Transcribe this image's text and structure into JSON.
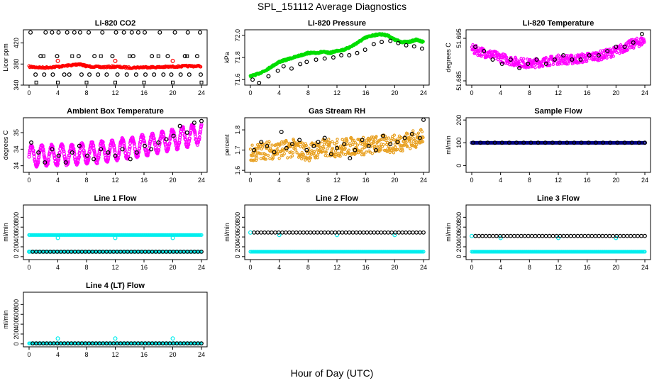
{
  "title": "SPL_151112  Average Diagnostics",
  "xlabel": "Hour of Day (UTC)",
  "colors": {
    "red": "#ff0000",
    "green": "#00dd00",
    "magenta": "#ff00ff",
    "orange": "#e8a020",
    "navy": "#000080",
    "cyan": "#00eeee",
    "black": "#000000"
  },
  "chart_data": [
    {
      "type": "scatter",
      "title": "Li-820 CO2",
      "ylabel": "Licor ppm",
      "xlim": [
        0,
        24
      ],
      "xticks": [
        0,
        4,
        8,
        12,
        16,
        20,
        24
      ],
      "ylim": [
        340,
        445
      ],
      "yticks": [
        340,
        380,
        420
      ],
      "series": [
        {
          "color": "#ff0000",
          "kind": "dense",
          "x": [
            0,
            2,
            4,
            6,
            7,
            8,
            10,
            12,
            14,
            16,
            18,
            20,
            22,
            24
          ],
          "y": [
            375,
            373,
            375,
            378,
            380,
            376,
            374,
            375,
            373,
            374,
            374,
            375,
            376,
            376
          ]
        },
        {
          "color": "#ff0000",
          "kind": "points",
          "x": [
            4,
            12,
            20
          ],
          "y": [
            386,
            386,
            386
          ]
        },
        {
          "color": "#000000",
          "kind": "points",
          "x": [
            0.2,
            2.3,
            3.2,
            4.1,
            5.3,
            6.3,
            7.1,
            8.3,
            10.2,
            12.1,
            13.2,
            14.3,
            15.2,
            16.1,
            18.2,
            20.3,
            22.1,
            23.8,
            0.9,
            2.1,
            3.3,
            4.9,
            5.6,
            7.3,
            8.4,
            9.6,
            10.8,
            12.3,
            13.6,
            14.9,
            16.2,
            17.4,
            18.7,
            19.8,
            21.1,
            22.3,
            23.9,
            1.6,
            3.9,
            6.9,
            9.1,
            11.6,
            14.5,
            17.1,
            19.3,
            21.7,
            23.4
          ],
          "y": [
            440,
            440,
            440,
            440,
            440,
            440,
            440,
            440,
            440,
            440,
            440,
            440,
            440,
            440,
            440,
            440,
            440,
            440,
            360,
            360,
            360,
            360,
            360,
            360,
            360,
            360,
            360,
            360,
            360,
            360,
            360,
            360,
            360,
            360,
            360,
            360,
            360,
            395,
            395,
            395,
            395,
            395,
            395,
            395,
            395,
            395,
            395
          ]
        },
        {
          "color": "#000000",
          "kind": "squares",
          "x": [
            1,
            4,
            8,
            12,
            16,
            20,
            24,
            2,
            6,
            10,
            14,
            18,
            22
          ],
          "y": [
            345,
            345,
            345,
            345,
            345,
            345,
            345,
            395,
            395,
            395,
            395,
            395,
            395
          ]
        }
      ]
    },
    {
      "type": "scatter",
      "title": "Li-820 Pressure",
      "ylabel": "kPa",
      "xlim": [
        0,
        24
      ],
      "xticks": [
        0,
        4,
        8,
        12,
        16,
        20,
        24
      ],
      "ylim": [
        71.55,
        72.05
      ],
      "yticks": [
        71.6,
        71.8,
        72.0
      ],
      "series": [
        {
          "color": "#00dd00",
          "kind": "dense",
          "x": [
            0,
            1,
            2,
            3,
            4,
            5,
            6,
            7,
            8,
            9,
            10,
            11,
            12,
            13,
            14,
            15,
            16,
            17,
            18,
            19,
            20,
            21,
            22,
            23,
            24
          ],
          "y": [
            71.63,
            71.65,
            71.68,
            71.72,
            71.76,
            71.78,
            71.8,
            71.82,
            71.84,
            71.84,
            71.85,
            71.84,
            71.86,
            71.87,
            71.9,
            71.94,
            71.98,
            72.0,
            72.01,
            72.0,
            71.96,
            71.94,
            71.94,
            71.96,
            71.94
          ]
        },
        {
          "color": "#000000",
          "kind": "points",
          "x": [
            0.3,
            1.2,
            2.5,
            3.8,
            4.6,
            5.7,
            6.9,
            7.8,
            9.1,
            10.3,
            11.5,
            12.6,
            13.7,
            14.8,
            15.9,
            17.1,
            18.2,
            19.4,
            20.5,
            21.6,
            22.7,
            23.8
          ],
          "y": [
            71.6,
            71.57,
            71.63,
            71.68,
            71.72,
            71.7,
            71.74,
            71.76,
            71.78,
            71.79,
            71.8,
            71.82,
            71.82,
            71.84,
            71.87,
            71.92,
            71.94,
            71.95,
            71.93,
            71.91,
            71.9,
            71.88
          ]
        }
      ]
    },
    {
      "type": "scatter",
      "title": "Li-820 Temperature",
      "ylabel": "degrees C",
      "xlim": [
        0,
        24
      ],
      "xticks": [
        0,
        4,
        8,
        12,
        16,
        20,
        24
      ],
      "ylim": [
        51.684,
        51.697
      ],
      "yticks": [
        51.685,
        51.695
      ],
      "series": [
        {
          "color": "#ff00ff",
          "kind": "noisy",
          "x": [
            0,
            2,
            4,
            6,
            8,
            10,
            12,
            14,
            16,
            18,
            20,
            22,
            24
          ],
          "y": [
            51.6925,
            51.6915,
            51.6905,
            51.6895,
            51.689,
            51.6895,
            51.69,
            51.69,
            51.6905,
            51.691,
            51.692,
            51.6935,
            51.6945
          ],
          "spread": 0.0022
        },
        {
          "color": "#000000",
          "kind": "points",
          "x": [
            0.5,
            1.7,
            2.9,
            4.2,
            5.4,
            6.6,
            7.8,
            9.0,
            10.3,
            11.5,
            12.7,
            13.9,
            15.1,
            16.3,
            17.6,
            18.8,
            20.0,
            21.2,
            22.4,
            23.6
          ],
          "y": [
            51.693,
            51.692,
            51.69,
            51.689,
            51.69,
            51.688,
            51.689,
            51.69,
            51.689,
            51.69,
            51.691,
            51.69,
            51.69,
            51.691,
            51.691,
            51.692,
            51.693,
            51.693,
            51.694,
            51.696
          ]
        }
      ]
    },
    {
      "type": "scatter",
      "title": "Ambient Box Temperature",
      "ylabel": "degrees C",
      "xlim": [
        0,
        24
      ],
      "xticks": [
        0,
        4,
        8,
        12,
        16,
        20,
        24
      ],
      "ylim": [
        33.3,
        34.95
      ],
      "yticks": [
        33.5,
        34.0,
        34.5
      ],
      "series": [
        {
          "color": "#ff00ff",
          "kind": "wave",
          "x": [
            0,
            24
          ],
          "base": [
            33.8,
            34.5
          ],
          "amp": 0.3,
          "period": 1.4
        },
        {
          "color": "#000000",
          "kind": "points",
          "x": [
            0.3,
            1.3,
            2.2,
            3.2,
            4.1,
            5.1,
            6.0,
            7.0,
            8.1,
            9.0,
            10.0,
            11.0,
            12.0,
            13.0,
            14.1,
            15.0,
            16.1,
            17.0,
            18.0,
            19.1,
            20.1,
            21.0,
            22.0,
            23.0,
            24.0
          ],
          "y": [
            34.2,
            33.9,
            33.6,
            34.0,
            33.8,
            33.6,
            33.9,
            34.1,
            33.8,
            33.7,
            34.0,
            33.9,
            33.8,
            34.0,
            33.7,
            33.9,
            34.1,
            34.0,
            34.2,
            34.3,
            34.4,
            34.7,
            34.5,
            34.8,
            34.85
          ]
        }
      ]
    },
    {
      "type": "scatter",
      "title": "Gas Stream RH",
      "ylabel": "percent",
      "xlim": [
        0,
        24
      ],
      "xticks": [
        0,
        4,
        8,
        12,
        16,
        20,
        24
      ],
      "ylim": [
        1.59,
        1.86
      ],
      "yticks": [
        1.6,
        1.7,
        1.8
      ],
      "series": [
        {
          "color": "#e8a020",
          "kind": "noisy",
          "x": [
            0,
            2,
            4,
            6,
            8,
            10,
            12,
            14,
            16,
            18,
            20,
            22,
            24
          ],
          "y": [
            1.68,
            1.7,
            1.7,
            1.71,
            1.69,
            1.71,
            1.71,
            1.72,
            1.72,
            1.73,
            1.73,
            1.75,
            1.76
          ],
          "spread": 0.09
        },
        {
          "color": "#000000",
          "kind": "points",
          "x": [
            0.5,
            1.5,
            2.3,
            3.3,
            4.3,
            5.0,
            5.8,
            6.8,
            7.8,
            8.8,
            9.4,
            10.3,
            11.2,
            12.0,
            13.0,
            13.8,
            14.5,
            15.5,
            16.4,
            17.4,
            18.4,
            19.4,
            20.4,
            21.4,
            22.4,
            23.5,
            24.0
          ],
          "y": [
            1.7,
            1.74,
            1.72,
            1.69,
            1.79,
            1.71,
            1.73,
            1.75,
            1.7,
            1.72,
            1.74,
            1.76,
            1.68,
            1.71,
            1.73,
            1.66,
            1.7,
            1.75,
            1.72,
            1.7,
            1.77,
            1.73,
            1.74,
            1.76,
            1.78,
            1.76,
            1.85
          ]
        }
      ]
    },
    {
      "type": "scatter",
      "title": "Sample Flow",
      "ylabel": "ml/min",
      "xlim": [
        0,
        24
      ],
      "xticks": [
        0,
        4,
        8,
        12,
        16,
        20,
        24
      ],
      "ylim": [
        -30,
        210
      ],
      "yticks": [
        0,
        100,
        200
      ],
      "series": [
        {
          "color": "#000080",
          "kind": "flat",
          "x": [
            0,
            24
          ],
          "y": 100
        },
        {
          "color": "#000000",
          "kind": "points",
          "x": [
            0.2,
            1.2,
            2.2,
            3.2,
            4.2,
            5.2,
            6.2,
            7.2,
            8.2,
            9.2,
            10.2,
            11.2,
            12.2,
            13.2,
            14.2,
            15.2,
            16.2,
            17.2,
            18.2,
            19.2,
            20.2,
            21.2,
            22.2,
            23.2,
            24.0
          ],
          "y": [
            100,
            100,
            100,
            100,
            100,
            100,
            100,
            100,
            100,
            100,
            100,
            100,
            100,
            100,
            100,
            100,
            100,
            100,
            100,
            100,
            100,
            100,
            100,
            100,
            100
          ]
        }
      ]
    },
    {
      "type": "scatter",
      "title": "Line 1 Flow",
      "ylabel": "ml/min",
      "xlim": [
        0,
        24
      ],
      "xticks": [
        0,
        4,
        8,
        12,
        16,
        20,
        24
      ],
      "ylim": [
        -60,
        1050
      ],
      "yticks": [
        0,
        200,
        400,
        600,
        800
      ],
      "series": [
        {
          "color": "#00eeee",
          "kind": "flat",
          "x": [
            0,
            24
          ],
          "y": 440
        },
        {
          "color": "#00eeee",
          "kind": "points",
          "x": [
            0,
            4,
            12,
            20
          ],
          "y": [
            100,
            380,
            380,
            380
          ]
        },
        {
          "color": "#00eeee",
          "kind": "flat",
          "x": [
            0,
            24
          ],
          "y": 100
        },
        {
          "color": "#000000",
          "kind": "ring-row",
          "x": [
            0.5,
            24
          ],
          "y": 100
        }
      ]
    },
    {
      "type": "scatter",
      "title": "Line 2 Flow",
      "ylabel": "ml/min",
      "xlim": [
        0,
        24
      ],
      "xticks": [
        0,
        4,
        8,
        12,
        16,
        20,
        24
      ],
      "ylim": [
        -60,
        1050
      ],
      "yticks": [
        0,
        200,
        400,
        600,
        800
      ],
      "series": [
        {
          "color": "#00eeee",
          "kind": "flat",
          "x": [
            0,
            24
          ],
          "y": 100
        },
        {
          "color": "#00eeee",
          "kind": "points",
          "x": [
            0,
            4,
            12,
            20
          ],
          "y": [
            490,
            440,
            440,
            440
          ]
        },
        {
          "color": "#000000",
          "kind": "ring-row",
          "x": [
            0.5,
            24
          ],
          "y": 490
        }
      ]
    },
    {
      "type": "scatter",
      "title": "Line 3 Flow",
      "ylabel": "ml/min",
      "xlim": [
        0,
        24
      ],
      "xticks": [
        0,
        4,
        8,
        12,
        16,
        20,
        24
      ],
      "ylim": [
        -60,
        1050
      ],
      "yticks": [
        0,
        200,
        400,
        600,
        800
      ],
      "series": [
        {
          "color": "#00eeee",
          "kind": "flat",
          "x": [
            0,
            24
          ],
          "y": 100
        },
        {
          "color": "#00eeee",
          "kind": "points",
          "x": [
            0,
            4,
            12,
            20
          ],
          "y": [
            420,
            380,
            380,
            380
          ]
        },
        {
          "color": "#000000",
          "kind": "ring-row",
          "x": [
            0.5,
            24
          ],
          "y": 420
        }
      ]
    },
    {
      "type": "scatter",
      "title": "Line 4 (LT) Flow",
      "ylabel": "ml/min",
      "xlim": [
        0,
        24
      ],
      "xticks": [
        0,
        4,
        8,
        12,
        16,
        20,
        24
      ],
      "ylim": [
        -60,
        1050
      ],
      "yticks": [
        0,
        200,
        400,
        600,
        800
      ],
      "series": [
        {
          "color": "#00eeee",
          "kind": "flat",
          "x": [
            0,
            24
          ],
          "y": 10
        },
        {
          "color": "#00eeee",
          "kind": "points",
          "x": [
            4,
            12,
            20
          ],
          "y": [
            110,
            110,
            110
          ]
        },
        {
          "color": "#000000",
          "kind": "ring-row",
          "x": [
            0.5,
            24
          ],
          "y": 10
        }
      ]
    }
  ]
}
